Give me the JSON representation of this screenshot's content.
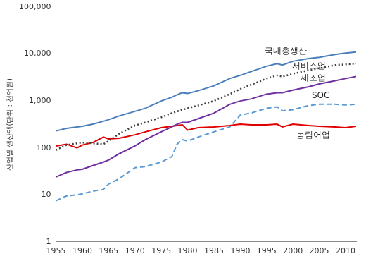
{
  "chart_data": {
    "type": "line",
    "y_label": "산업별 생산액(단위 : 천억원)",
    "log": "y",
    "grid": false,
    "x": [
      1955,
      1957,
      1959,
      1960,
      1962,
      1964,
      1965,
      1967,
      1970,
      1972,
      1975,
      1977,
      1978,
      1979,
      1980,
      1982,
      1985,
      1988,
      1990,
      1992,
      1995,
      1997,
      1998,
      2000,
      2003,
      2005,
      2008,
      2010,
      2012
    ],
    "xlim": [
      1955,
      2012
    ],
    "xticks": [
      1955,
      1960,
      1965,
      1970,
      1975,
      1980,
      1985,
      1990,
      1995,
      2000,
      2005,
      2010
    ],
    "ylim": [
      1,
      100000
    ],
    "yticks": [
      1,
      10,
      100,
      {
        "value": 1000,
        "label": "1,000"
      },
      {
        "value": 10000,
        "label": "10,000"
      },
      {
        "value": 100000,
        "label": "100,000"
      }
    ],
    "series": [
      {
        "name": "국내총생산",
        "color": "#4a7ebb",
        "line_style": "solid",
        "values": [
          230,
          260,
          280,
          290,
          320,
          370,
          400,
          480,
          600,
          700,
          1000,
          1200,
          1350,
          1500,
          1450,
          1650,
          2100,
          3000,
          3500,
          4200,
          5500,
          6200,
          5800,
          7000,
          8000,
          8500,
          9800,
          10500,
          11000
        ]
      },
      {
        "name": "서비스업",
        "color": "#404040",
        "line_style": "dotted",
        "values": [
          90,
          115,
          125,
          130,
          125,
          120,
          140,
          200,
          300,
          350,
          450,
          550,
          600,
          650,
          700,
          800,
          1000,
          1400,
          1800,
          2200,
          3000,
          3500,
          3300,
          3800,
          4500,
          5000,
          5800,
          6000,
          6300
        ]
      },
      {
        "name": "제조업",
        "color": "#7030a0",
        "line_style": "solid",
        "values": [
          24,
          30,
          34,
          35,
          42,
          50,
          55,
          75,
          110,
          150,
          220,
          280,
          320,
          350,
          350,
          420,
          550,
          850,
          1000,
          1100,
          1400,
          1500,
          1500,
          1700,
          2000,
          2300,
          2700,
          3000,
          3300
        ]
      },
      {
        "name": "SOC",
        "color": "#5b9bd5",
        "line_style": "dashed",
        "values": [
          7.5,
          9.5,
          10,
          10.5,
          12,
          13,
          17,
          22,
          38,
          40,
          50,
          65,
          120,
          150,
          140,
          170,
          220,
          280,
          500,
          550,
          700,
          750,
          620,
          650,
          800,
          850,
          850,
          820,
          850
        ]
      },
      {
        "name": "농림어업",
        "color": "#e00000",
        "line_style": "solid",
        "values": [
          110,
          120,
          100,
          115,
          130,
          170,
          155,
          160,
          190,
          220,
          270,
          290,
          300,
          310,
          240,
          270,
          280,
          300,
          320,
          310,
          310,
          320,
          280,
          320,
          300,
          290,
          280,
          270,
          290
        ]
      }
    ]
  }
}
